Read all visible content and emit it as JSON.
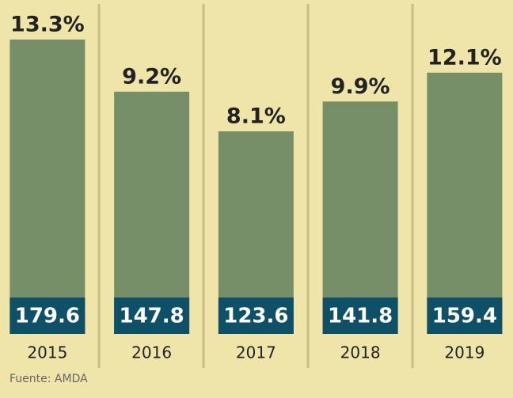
{
  "chart_data": {
    "type": "bar",
    "categories": [
      "2015",
      "2016",
      "2017",
      "2018",
      "2019"
    ],
    "values": [
      179.6,
      147.8,
      123.6,
      141.8,
      159.4
    ],
    "annotations": [
      "13.3%",
      "9.2%",
      "8.1%",
      "9.9%",
      "12.1%"
    ],
    "color": "#778f68",
    "label_box_color": "#0d5068",
    "source": "Fuente: AMDA"
  }
}
